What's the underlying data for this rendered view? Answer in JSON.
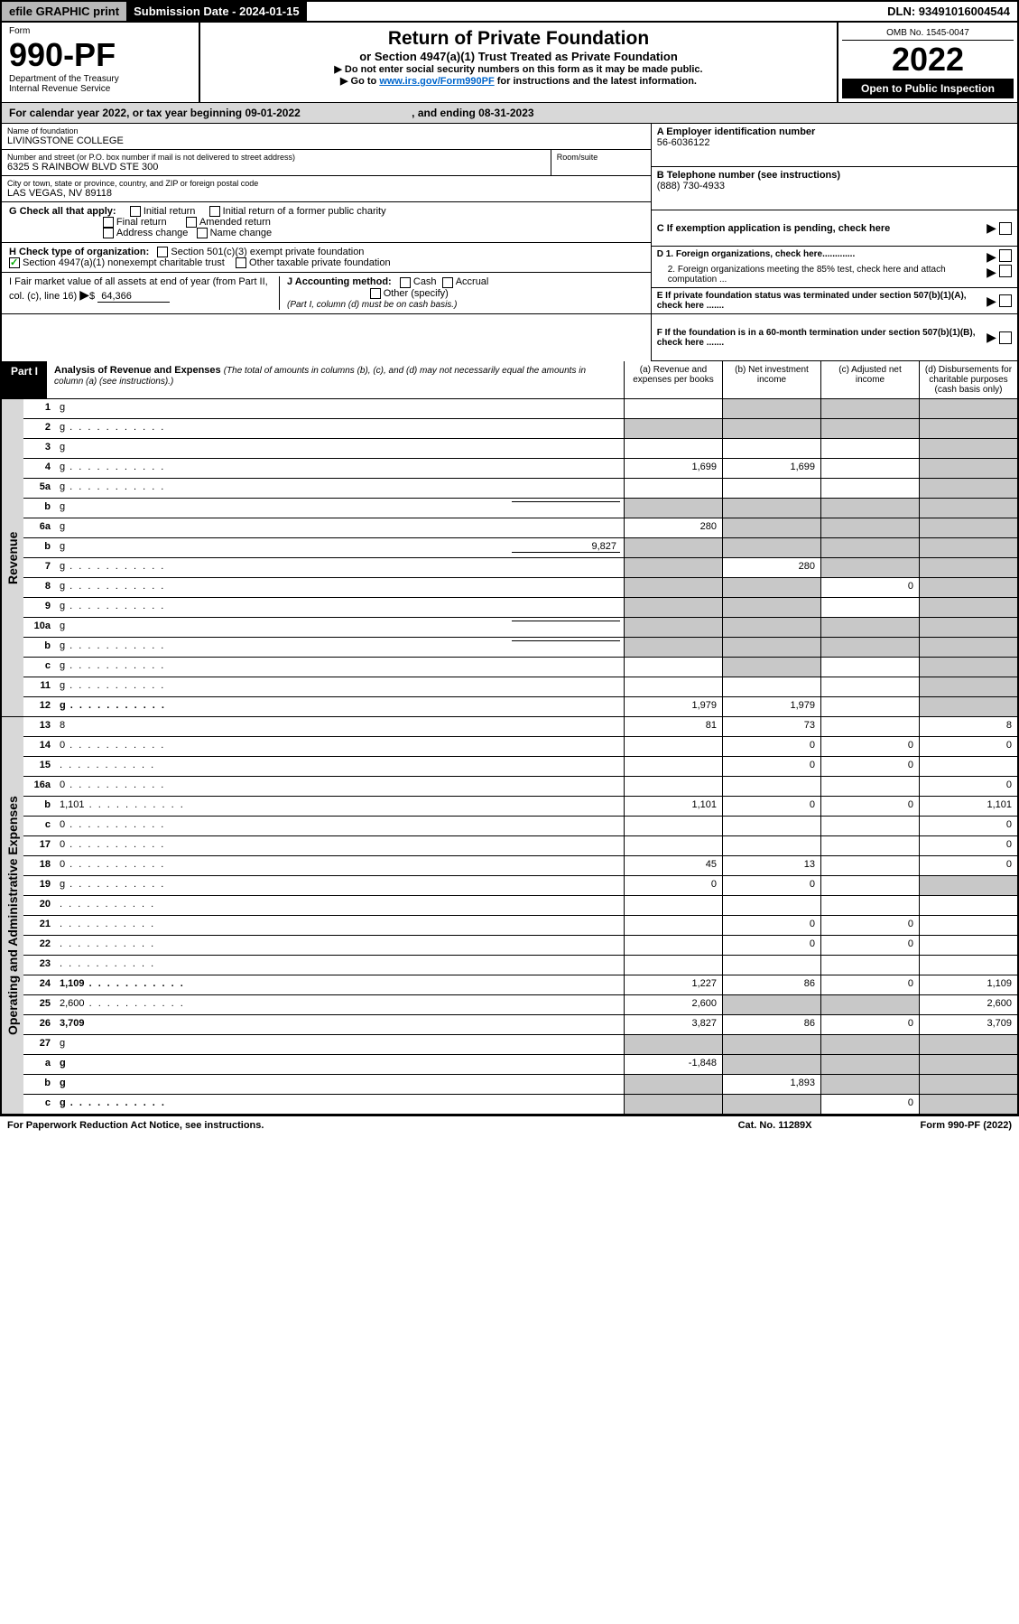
{
  "topbar": {
    "efile": "efile GRAPHIC print",
    "submission": "Submission Date - 2024-01-15",
    "dln": "DLN: 93491016004544"
  },
  "header": {
    "form_label": "Form",
    "form_num": "990-PF",
    "dept": "Department of the Treasury",
    "irs": "Internal Revenue Service",
    "title": "Return of Private Foundation",
    "subtitle": "or Section 4947(a)(1) Trust Treated as Private Foundation",
    "instr1": "▶ Do not enter social security numbers on this form as it may be made public.",
    "instr2": "▶ Go to ",
    "instr2_link": "www.irs.gov/Form990PF",
    "instr2_end": " for instructions and the latest information.",
    "omb": "OMB No. 1545-0047",
    "year": "2022",
    "open": "Open to Public Inspection"
  },
  "calyear": "For calendar year 2022, or tax year beginning 09-01-2022",
  "calyear_end": ", and ending 08-31-2023",
  "foundation": {
    "name_lbl": "Name of foundation",
    "name": "LIVINGSTONE COLLEGE",
    "addr_lbl": "Number and street (or P.O. box number if mail is not delivered to street address)",
    "addr": "6325 S RAINBOW BLVD STE 300",
    "room_lbl": "Room/suite",
    "city_lbl": "City or town, state or province, country, and ZIP or foreign postal code",
    "city": "LAS VEGAS, NV  89118"
  },
  "right_info": {
    "a_lbl": "A Employer identification number",
    "a_val": "56-6036122",
    "b_lbl": "B Telephone number (see instructions)",
    "b_val": "(888) 730-4933",
    "c_lbl": "C If exemption application is pending, check here",
    "d1": "D 1. Foreign organizations, check here.............",
    "d2": "2. Foreign organizations meeting the 85% test, check here and attach computation ...",
    "e_lbl": "E  If private foundation status was terminated under section 507(b)(1)(A), check here .......",
    "f_lbl": "F  If the foundation is in a 60-month termination under section 507(b)(1)(B), check here ......."
  },
  "checks": {
    "g_lbl": "G Check all that apply:",
    "g1": "Initial return",
    "g2": "Initial return of a former public charity",
    "g3": "Final return",
    "g4": "Amended return",
    "g5": "Address change",
    "g6": "Name change",
    "h_lbl": "H Check type of organization:",
    "h1": "Section 501(c)(3) exempt private foundation",
    "h2": "Section 4947(a)(1) nonexempt charitable trust",
    "h3": "Other taxable private foundation",
    "i_lbl": "I Fair market value of all assets at end of year (from Part II, col. (c), line 16)",
    "i_val": "64,366",
    "j_lbl": "J Accounting method:",
    "j1": "Cash",
    "j2": "Accrual",
    "j3": "Other (specify)",
    "j_note": "(Part I, column (d) must be on cash basis.)"
  },
  "part1": {
    "label": "Part I",
    "title": "Analysis of Revenue and Expenses",
    "title_note": "(The total of amounts in columns (b), (c), and (d) may not necessarily equal the amounts in column (a) (see instructions).)",
    "col_a": "(a)   Revenue and expenses per books",
    "col_b": "(b)   Net investment income",
    "col_c": "(c)   Adjusted net income",
    "col_d": "(d)  Disbursements for charitable purposes (cash basis only)"
  },
  "side_labels": {
    "rev": "Revenue",
    "exp": "Operating and Administrative Expenses"
  },
  "rows": [
    {
      "n": "1",
      "d": "g",
      "a": "",
      "b": "g",
      "c": "g"
    },
    {
      "n": "2",
      "d": "g",
      "dots": true,
      "a": "g",
      "b": "g",
      "c": "g"
    },
    {
      "n": "3",
      "d": "g",
      "a": "",
      "b": "",
      "c": ""
    },
    {
      "n": "4",
      "d": "g",
      "dots": true,
      "a": "1,699",
      "b": "1,699",
      "c": ""
    },
    {
      "n": "5a",
      "d": "g",
      "dots": true,
      "a": "",
      "b": "",
      "c": ""
    },
    {
      "n": "b",
      "d": "g",
      "inline": "",
      "a": "g",
      "b": "g",
      "c": "g"
    },
    {
      "n": "6a",
      "d": "g",
      "a": "280",
      "b": "g",
      "c": "g"
    },
    {
      "n": "b",
      "d": "g",
      "inline": "9,827",
      "a": "g",
      "b": "g",
      "c": "g"
    },
    {
      "n": "7",
      "d": "g",
      "dots": true,
      "a": "g",
      "b": "280",
      "c": "g"
    },
    {
      "n": "8",
      "d": "g",
      "dots": true,
      "a": "g",
      "b": "g",
      "c": "0"
    },
    {
      "n": "9",
      "d": "g",
      "dots": true,
      "a": "g",
      "b": "g",
      "c": ""
    },
    {
      "n": "10a",
      "d": "g",
      "inline": "",
      "a": "g",
      "b": "g",
      "c": "g"
    },
    {
      "n": "b",
      "d": "g",
      "dots": true,
      "inline": "",
      "a": "g",
      "b": "g",
      "c": "g"
    },
    {
      "n": "c",
      "d": "g",
      "dots": true,
      "a": "",
      "b": "g",
      "c": ""
    },
    {
      "n": "11",
      "d": "g",
      "dots": true,
      "a": "",
      "b": "",
      "c": ""
    },
    {
      "n": "12",
      "d": "g",
      "dots": true,
      "bold": true,
      "a": "1,979",
      "b": "1,979",
      "c": ""
    }
  ],
  "exp_rows": [
    {
      "n": "13",
      "d": "8",
      "a": "81",
      "b": "73",
      "c": ""
    },
    {
      "n": "14",
      "d": "0",
      "dots": true,
      "a": "",
      "b": "0",
      "c": "0"
    },
    {
      "n": "15",
      "d": "",
      "dots": true,
      "a": "",
      "b": "0",
      "c": "0"
    },
    {
      "n": "16a",
      "d": "0",
      "dots": true,
      "a": "",
      "b": "",
      "c": ""
    },
    {
      "n": "b",
      "d": "1,101",
      "dots": true,
      "a": "1,101",
      "b": "0",
      "c": "0"
    },
    {
      "n": "c",
      "d": "0",
      "dots": true,
      "a": "",
      "b": "",
      "c": ""
    },
    {
      "n": "17",
      "d": "0",
      "dots": true,
      "a": "",
      "b": "",
      "c": ""
    },
    {
      "n": "18",
      "d": "0",
      "dots": true,
      "a": "45",
      "b": "13",
      "c": ""
    },
    {
      "n": "19",
      "d": "g",
      "dots": true,
      "a": "0",
      "b": "0",
      "c": ""
    },
    {
      "n": "20",
      "d": "",
      "dots": true,
      "a": "",
      "b": "",
      "c": ""
    },
    {
      "n": "21",
      "d": "",
      "dots": true,
      "a": "",
      "b": "0",
      "c": "0"
    },
    {
      "n": "22",
      "d": "",
      "dots": true,
      "a": "",
      "b": "0",
      "c": "0"
    },
    {
      "n": "23",
      "d": "",
      "dots": true,
      "a": "",
      "b": "",
      "c": ""
    },
    {
      "n": "24",
      "d": "1,109",
      "dots": true,
      "bold": true,
      "a": "1,227",
      "b": "86",
      "c": "0"
    },
    {
      "n": "25",
      "d": "2,600",
      "dots": true,
      "a": "2,600",
      "b": "g",
      "c": "g"
    },
    {
      "n": "26",
      "d": "3,709",
      "bold": true,
      "a": "3,827",
      "b": "86",
      "c": "0"
    },
    {
      "n": "27",
      "d": "g",
      "a": "g",
      "b": "g",
      "c": "g"
    },
    {
      "n": "a",
      "d": "g",
      "bold": true,
      "a": "-1,848",
      "b": "g",
      "c": "g"
    },
    {
      "n": "b",
      "d": "g",
      "bold": true,
      "a": "g",
      "b": "1,893",
      "c": "g"
    },
    {
      "n": "c",
      "d": "g",
      "dots": true,
      "bold": true,
      "a": "g",
      "b": "g",
      "c": "0"
    }
  ],
  "footer": {
    "left": "For Paperwork Reduction Act Notice, see instructions.",
    "mid": "Cat. No. 11289X",
    "right": "Form 990-PF (2022)"
  }
}
